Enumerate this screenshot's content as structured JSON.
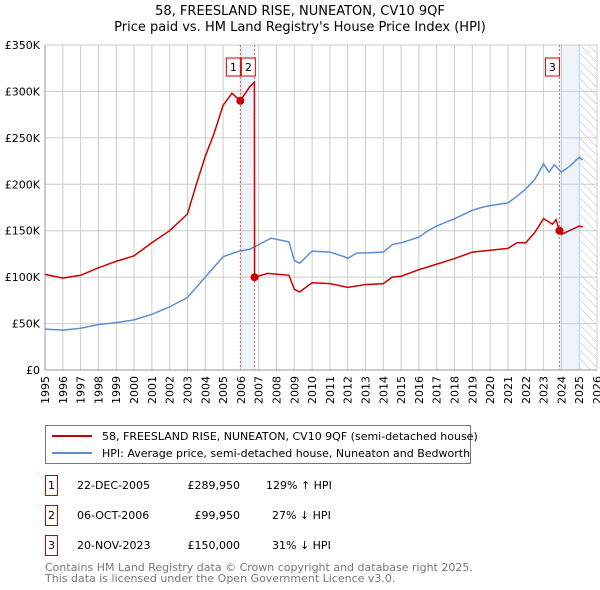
{
  "chart_data": {
    "type": "line",
    "title": "58, FREESLAND RISE, NUNEATON, CV10 9QF",
    "subtitle": "Price paid vs. HM Land Registry's House Price Index (HPI)",
    "xlim": [
      1995,
      2026
    ],
    "ylim": [
      0,
      350000
    ],
    "x_ticks": [
      "1995",
      "1996",
      "1997",
      "1998",
      "1999",
      "2000",
      "2001",
      "2002",
      "2003",
      "2004",
      "2005",
      "2006",
      "2007",
      "2008",
      "2009",
      "2010",
      "2011",
      "2012",
      "2013",
      "2014",
      "2015",
      "2016",
      "2017",
      "2018",
      "2019",
      "2020",
      "2021",
      "2022",
      "2023",
      "2024",
      "2025",
      "2026"
    ],
    "y_ticks": [
      "£0",
      "£50K",
      "£100K",
      "£150K",
      "£200K",
      "£250K",
      "£300K",
      "£350K"
    ],
    "grid": true,
    "series": [
      {
        "name": "58, FREESLAND RISE, NUNEATON, CV10 9QF (semi-detached house)",
        "color": "#cc0000",
        "points": [
          [
            1995,
            103
          ],
          [
            1996,
            99
          ],
          [
            1997,
            102
          ],
          [
            1998,
            110
          ],
          [
            1999,
            117
          ],
          [
            2000,
            123
          ],
          [
            2001,
            137
          ],
          [
            2002,
            150
          ],
          [
            2003,
            168
          ],
          [
            2003.5,
            200
          ],
          [
            2004,
            230
          ],
          [
            2004.5,
            255
          ],
          [
            2005,
            285
          ],
          [
            2005.5,
            298
          ],
          [
            2005.97,
            290
          ],
          [
            2006.5,
            305
          ],
          [
            2006.76,
            310
          ],
          [
            2006.77,
            99.95
          ],
          [
            2007.5,
            104
          ],
          [
            2008.7,
            102
          ],
          [
            2009,
            87
          ],
          [
            2009.3,
            84
          ],
          [
            2010,
            94
          ],
          [
            2011,
            93
          ],
          [
            2012,
            89
          ],
          [
            2013,
            92
          ],
          [
            2014,
            93
          ],
          [
            2014.5,
            100
          ],
          [
            2015,
            101
          ],
          [
            2016,
            108
          ],
          [
            2017,
            114
          ],
          [
            2018,
            120
          ],
          [
            2019,
            127
          ],
          [
            2020,
            129
          ],
          [
            2021,
            131
          ],
          [
            2021.5,
            137
          ],
          [
            2022,
            137
          ],
          [
            2022.5,
            148
          ],
          [
            2023,
            163
          ],
          [
            2023.5,
            157
          ],
          [
            2023.7,
            162
          ],
          [
            2023.89,
            150
          ],
          [
            2024,
            146
          ],
          [
            2025,
            155
          ],
          [
            2025.2,
            154
          ]
        ]
      },
      {
        "name": "HPI: Average price, semi-detached house, Nuneaton and Bedworth",
        "color": "#5b8fd1",
        "points": [
          [
            1995,
            44
          ],
          [
            1996,
            43
          ],
          [
            1997,
            45
          ],
          [
            1998,
            49
          ],
          [
            1999,
            51
          ],
          [
            2000,
            54
          ],
          [
            2001,
            60
          ],
          [
            2002,
            68
          ],
          [
            2003,
            78
          ],
          [
            2004,
            100
          ],
          [
            2005,
            122
          ],
          [
            2005.9,
            128
          ],
          [
            2006.5,
            130
          ],
          [
            2007,
            135
          ],
          [
            2007.7,
            142
          ],
          [
            2008.7,
            138
          ],
          [
            2009,
            118
          ],
          [
            2009.3,
            115
          ],
          [
            2010,
            128
          ],
          [
            2011,
            127
          ],
          [
            2011.8,
            122
          ],
          [
            2012,
            120
          ],
          [
            2012.5,
            126
          ],
          [
            2013,
            126
          ],
          [
            2014,
            127
          ],
          [
            2014.5,
            135
          ],
          [
            2015,
            137
          ],
          [
            2016,
            143
          ],
          [
            2016.5,
            150
          ],
          [
            2017,
            155
          ],
          [
            2018,
            163
          ],
          [
            2019,
            172
          ],
          [
            2019.5,
            175
          ],
          [
            2020,
            177
          ],
          [
            2021,
            180
          ],
          [
            2021.5,
            187
          ],
          [
            2022,
            195
          ],
          [
            2022.5,
            205
          ],
          [
            2023,
            222
          ],
          [
            2023.3,
            213
          ],
          [
            2023.6,
            221
          ],
          [
            2024,
            213
          ],
          [
            2024.5,
            220
          ],
          [
            2025,
            229
          ],
          [
            2025.2,
            226
          ]
        ]
      }
    ],
    "sales": [
      {
        "label": "1",
        "x": 2005.97,
        "value": 289950,
        "date": "22-DEC-2005",
        "price": "£289,950",
        "hpi": "129% ↑ HPI"
      },
      {
        "label": "2",
        "x": 2006.77,
        "value": 99950,
        "date": "06-OCT-2006",
        "price": "£99,950",
        "hpi": "27% ↓ HPI"
      },
      {
        "label": "3",
        "x": 2023.89,
        "value": 150000,
        "date": "20-NOV-2023",
        "price": "£150,000",
        "hpi": "31% ↓ HPI"
      }
    ],
    "shaded_ranges": [
      [
        2005.97,
        2006.77
      ],
      [
        2023.89,
        2025.05
      ]
    ],
    "forecast_hatch": [
      2025.05,
      2026
    ]
  },
  "footer": [
    "Contains HM Land Registry data © Crown copyright and database right 2025.",
    "This data is licensed under the Open Government Licence v3.0."
  ]
}
